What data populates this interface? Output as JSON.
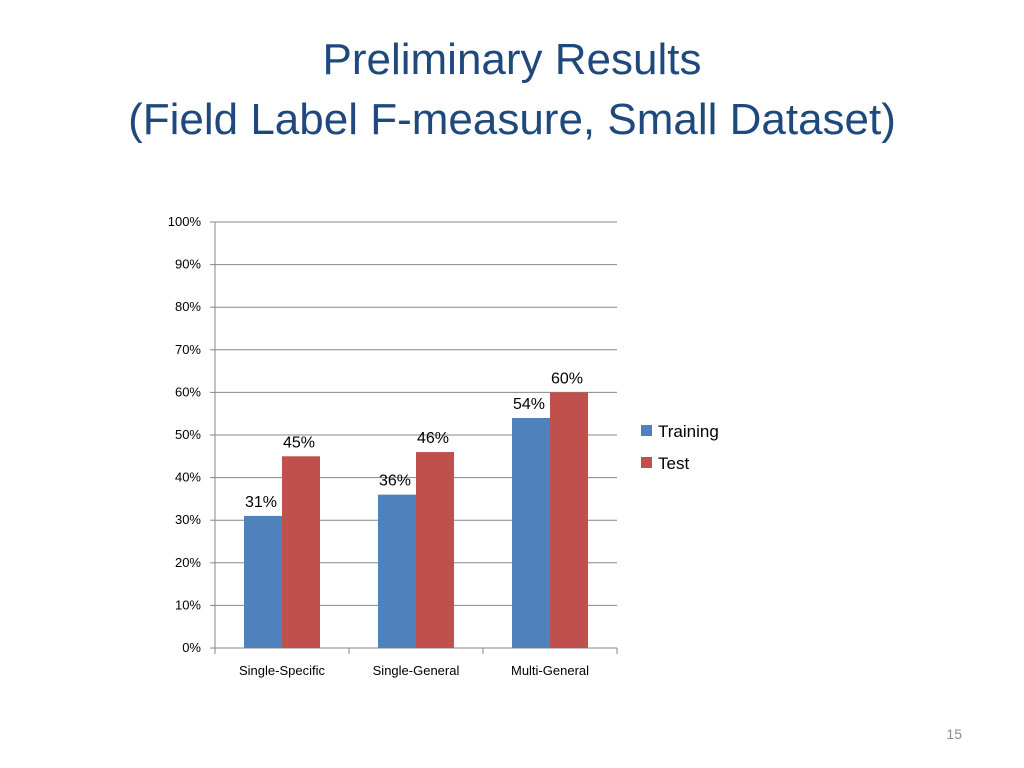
{
  "slide": {
    "title_line1": "Preliminary Results",
    "title_line2": "(Field Label F-measure, Small Dataset)",
    "page_number": "15"
  },
  "chart_data": {
    "type": "bar",
    "categories": [
      "Single-Specific",
      "Single-General",
      "Multi-General"
    ],
    "series": [
      {
        "name": "Training",
        "values": [
          31,
          36,
          54
        ],
        "labels": [
          "31%",
          "36%",
          "54%"
        ],
        "color": "#4f81bd"
      },
      {
        "name": "Test",
        "values": [
          45,
          46,
          60
        ],
        "labels": [
          "45%",
          "46%",
          "60%"
        ],
        "color": "#c0504d"
      }
    ],
    "ylim": [
      0,
      100
    ],
    "y_ticks": [
      0,
      10,
      20,
      30,
      40,
      50,
      60,
      70,
      80,
      90,
      100
    ],
    "y_tick_labels": [
      "0%",
      "10%",
      "20%",
      "30%",
      "40%",
      "50%",
      "60%",
      "70%",
      "80%",
      "90%",
      "100%"
    ],
    "grid": true,
    "legend": "right"
  }
}
